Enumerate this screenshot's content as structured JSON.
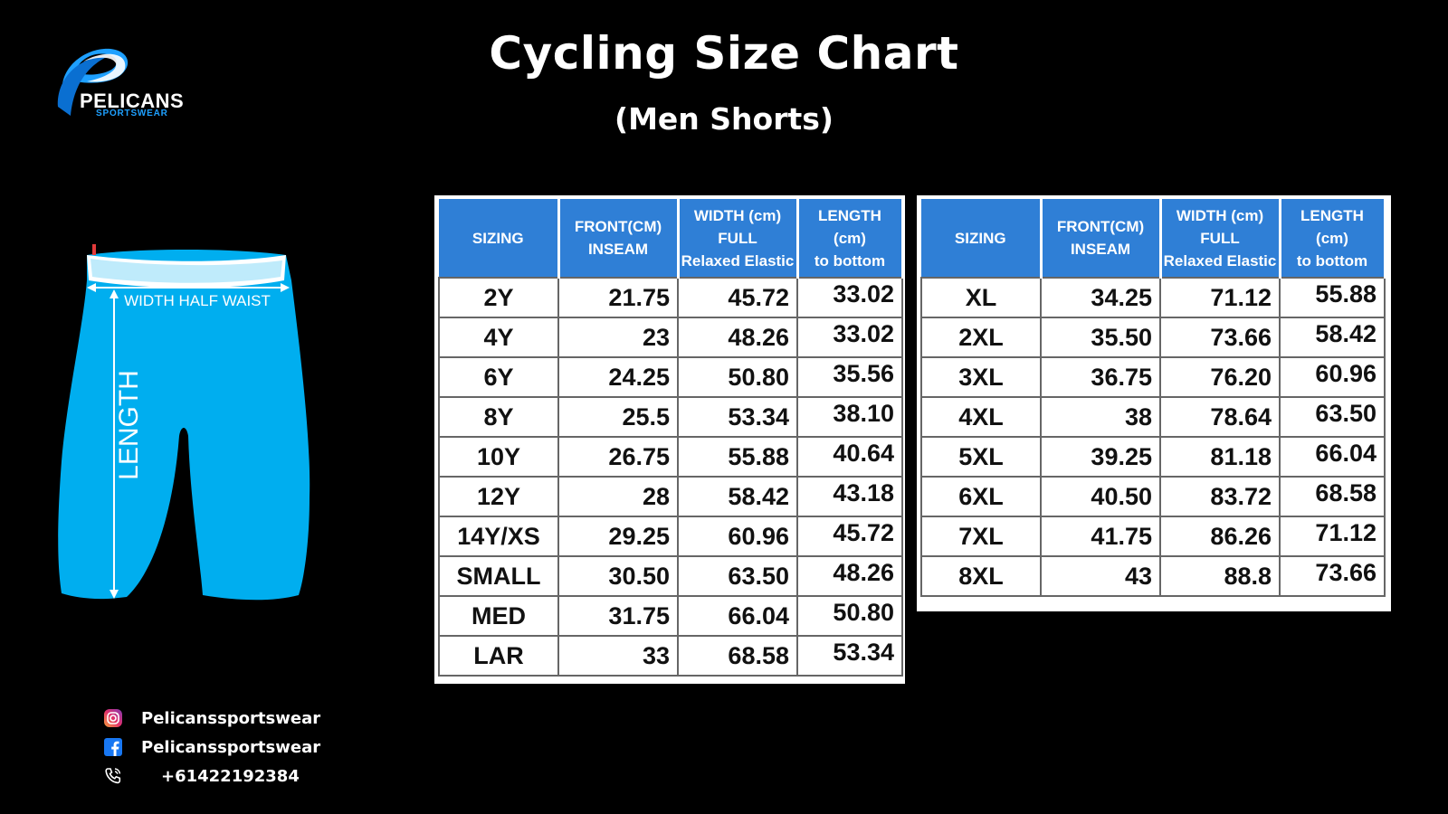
{
  "header": {
    "title": "Cycling Size Chart",
    "subtitle": "(Men Shorts)"
  },
  "logo": {
    "brand": "PELICANS",
    "tagline": "SPORTSWEAR"
  },
  "diagram": {
    "waist_label": "WIDTH HALF WAIST",
    "length_label": "LENGTH",
    "garment_color": "#00aeef"
  },
  "size_table": {
    "headers": {
      "sizing": "SIZING",
      "front_line1": "FRONT(CM)",
      "front_line2": "INSEAM",
      "width_line1": "WIDTH (cm)",
      "width_line2": "FULL",
      "width_line3": "Relaxed Elastic",
      "length_line1": "LENGTH",
      "length_line2": "(cm)",
      "length_line3": "to bottom"
    },
    "header_color": "#2f7fd6",
    "left_rows": [
      {
        "size": "2Y",
        "inseam": "21.75",
        "width": "45.72",
        "length": "33.02"
      },
      {
        "size": "4Y",
        "inseam": "23",
        "width": "48.26",
        "length": "33.02"
      },
      {
        "size": "6Y",
        "inseam": "24.25",
        "width": "50.80",
        "length": "35.56"
      },
      {
        "size": "8Y",
        "inseam": "25.5",
        "width": "53.34",
        "length": "38.10"
      },
      {
        "size": "10Y",
        "inseam": "26.75",
        "width": "55.88",
        "length": "40.64"
      },
      {
        "size": "12Y",
        "inseam": "28",
        "width": "58.42",
        "length": "43.18"
      },
      {
        "size": "14Y/XS",
        "inseam": "29.25",
        "width": "60.96",
        "length": "45.72"
      },
      {
        "size": "SMALL",
        "inseam": "30.50",
        "width": "63.50",
        "length": "48.26"
      },
      {
        "size": "MED",
        "inseam": "31.75",
        "width": "66.04",
        "length": "50.80"
      },
      {
        "size": "LAR",
        "inseam": "33",
        "width": "68.58",
        "length": "53.34"
      }
    ],
    "right_rows": [
      {
        "size": "XL",
        "inseam": "34.25",
        "width": "71.12",
        "length": "55.88"
      },
      {
        "size": "2XL",
        "inseam": "35.50",
        "width": "73.66",
        "length": "58.42"
      },
      {
        "size": "3XL",
        "inseam": "36.75",
        "width": "76.20",
        "length": "60.96"
      },
      {
        "size": "4XL",
        "inseam": "38",
        "width": "78.64",
        "length": "63.50"
      },
      {
        "size": "5XL",
        "inseam": "39.25",
        "width": "81.18",
        "length": "66.04"
      },
      {
        "size": "6XL",
        "inseam": "40.50",
        "width": "83.72",
        "length": "68.58"
      },
      {
        "size": "7XL",
        "inseam": "41.75",
        "width": "86.26",
        "length": "71.12"
      },
      {
        "size": "8XL",
        "inseam": "43",
        "width": "88.8",
        "length": "73.66"
      }
    ]
  },
  "contacts": [
    {
      "icon": "instagram-icon",
      "text": "Pelicanssportswear"
    },
    {
      "icon": "facebook-icon",
      "text": "Pelicanssportswear"
    },
    {
      "icon": "phone-icon",
      "text": "+61422192384"
    }
  ]
}
